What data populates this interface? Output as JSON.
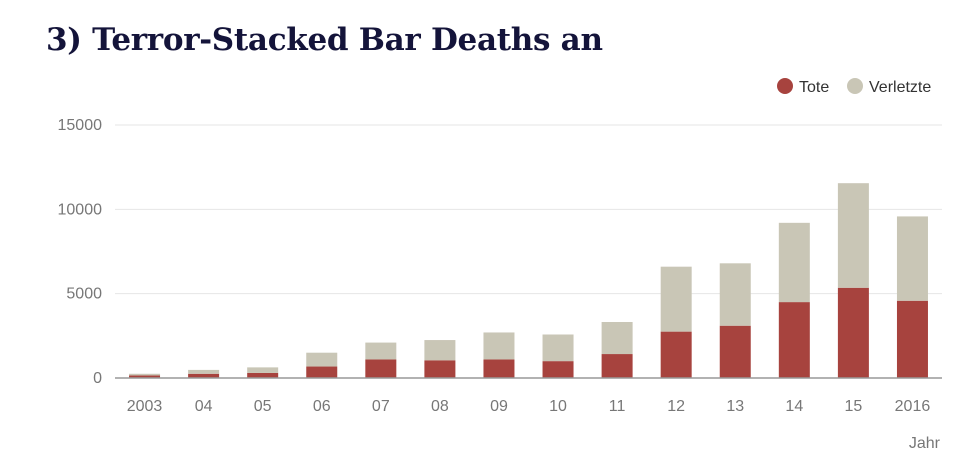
{
  "title": "3) Terror-Stacked Bar Deaths an",
  "colors": {
    "tote": "#a7433e",
    "verletzte": "#c9c6b6",
    "grid": "#e6e6e6",
    "axis": "#999999",
    "title": "#14143a"
  },
  "chart_data": {
    "type": "bar",
    "stacked": true,
    "title": "3) Terror-Stacked Bar Deaths an",
    "xlabel": "Jahr",
    "ylabel": "",
    "categories": [
      "2003",
      "04",
      "05",
      "06",
      "07",
      "08",
      "09",
      "10",
      "11",
      "12",
      "13",
      "14",
      "15",
      "2016"
    ],
    "series": [
      {
        "name": "Tote",
        "values": [
          150,
          250,
          300,
          680,
          1100,
          1050,
          1100,
          1000,
          1420,
          2750,
          3100,
          4500,
          5350,
          4580
        ]
      },
      {
        "name": "Verletzte",
        "values": [
          100,
          230,
          330,
          820,
          1000,
          1200,
          1600,
          1580,
          1900,
          3850,
          3700,
          4700,
          6200,
          5000
        ]
      }
    ],
    "ylim": [
      0,
      15000
    ],
    "yticks": [
      "0",
      "5000",
      "10000",
      "15000"
    ],
    "grid": true,
    "legend_position": "top-right"
  }
}
